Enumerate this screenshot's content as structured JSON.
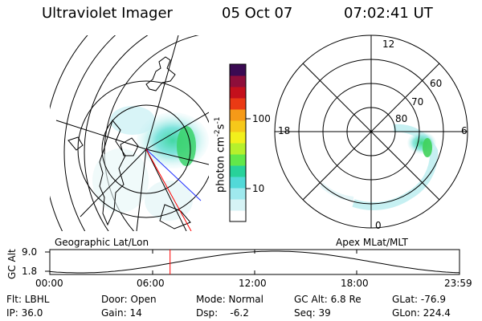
{
  "header": {
    "instrument": "Ultraviolet Imager",
    "date": "05 Oct 07",
    "time": "07:02:41 UT"
  },
  "colorbar": {
    "unit": "photon cm",
    "unit_sup": "-2",
    "unit_s": "s",
    "unit_s_sup": "-1",
    "ticks": [
      "100",
      "10"
    ],
    "colors": [
      "#ffffff",
      "#d6f3f5",
      "#9fe9ee",
      "#52d9d8",
      "#28d29a",
      "#62e84a",
      "#b6f02c",
      "#f2f01c",
      "#f6c81a",
      "#f59a18",
      "#ea3a14",
      "#c4101c",
      "#8e0e3a",
      "#3a0a52"
    ]
  },
  "geo_map": {
    "label": "Geographic Lat/Lon"
  },
  "polar_map": {
    "label": "Apex MLat/MLT",
    "mlt_labels": [
      "12",
      "18",
      "6",
      "0"
    ],
    "lat_labels": [
      "60",
      "70",
      "80"
    ]
  },
  "altitude_plot": {
    "ylabel": "GC Alt",
    "yticks": [
      "9.0",
      "1.8"
    ],
    "xticks": [
      "00:00",
      "06:00",
      "12:00",
      "18:00",
      "23:59"
    ],
    "marker_hour": 7.045
  },
  "info": {
    "row1": [
      "Flt: LBHL",
      "Door: Open",
      "Mode: Normal",
      "GC Alt: 6.8 Re",
      "GLat: -76.9"
    ],
    "row2": [
      "IP: 36.0",
      "Gain: 14",
      "Dsp:    -6.2",
      "Seq: 39",
      "GLon: 224.4"
    ]
  }
}
